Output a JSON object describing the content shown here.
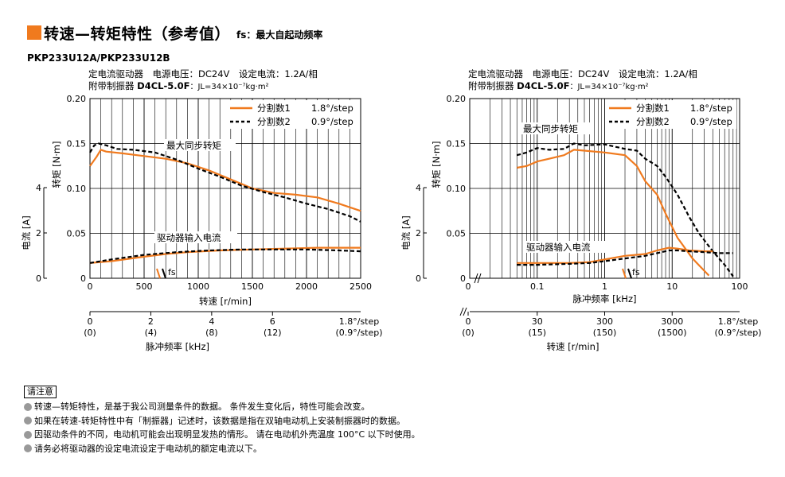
{
  "header": {
    "title": "转速—转矩特性（参考值）",
    "subtitle": "fs：最大自起动频率",
    "model": "PKP233U12A/PKP233U12B"
  },
  "conditions": {
    "line1": "定电流驱动器　电源电压：DC24V　设定电流：1.2A/相",
    "line2_prefix": "附带制振器 ",
    "line2_bold": "D4CL-5.0F",
    "line2_rest": "：JL=34×10⁻⁷kg·m²"
  },
  "colors": {
    "orange": "#f07a1e",
    "black": "#000000",
    "grid": "#000000"
  },
  "legend": {
    "s1_name": "分割数1",
    "s1_step": "1.8°/step",
    "s2_name": "分割数2",
    "s2_step": "0.9°/step"
  },
  "labels": {
    "pullout": "最大同步转矩",
    "current": "驱动器输入电流",
    "fs": "fs",
    "torque_axis": "转矩 [N·m]",
    "current_axis": "电流 [A]",
    "speed_axis": "转速 [r/min]",
    "pulse_axis": "脉冲频率 [kHz]",
    "step18": "1.8°/step",
    "step09": "(0.9°/step)"
  },
  "chart_data": [
    {
      "type": "line",
      "x_scale": "linear",
      "xlabel": "转速 [r/min]",
      "ylabel": "转矩 [N·m]",
      "xlim": [
        0,
        2500
      ],
      "ylim": [
        0,
        0.2
      ],
      "x_ticks": [
        "0",
        "500",
        "1000",
        "1500",
        "2000",
        "2500"
      ],
      "y_ticks": [
        "0",
        "0.05",
        "0.10",
        "0.15",
        "0.20"
      ],
      "y2_label": "电流 [A]",
      "y2_ticks": [
        "0",
        "2",
        "4"
      ],
      "secondary_axis": {
        "label": "脉冲频率 [kHz]",
        "ticks": [
          "0",
          "2",
          "4",
          "6"
        ],
        "ticks_09": [
          "(0)",
          "(4)",
          "(8)",
          "(12)"
        ]
      },
      "series": [
        {
          "name": "分割数1",
          "kind": "torque",
          "style": "solid",
          "x": [
            0,
            30,
            60,
            100,
            150,
            300,
            500,
            700,
            900,
            1100,
            1300,
            1500,
            1700,
            1900,
            2100,
            2300,
            2500
          ],
          "y": [
            0.125,
            0.13,
            0.135,
            0.143,
            0.141,
            0.139,
            0.136,
            0.133,
            0.128,
            0.12,
            0.11,
            0.1,
            0.095,
            0.093,
            0.09,
            0.083,
            0.075
          ]
        },
        {
          "name": "分割数2",
          "kind": "torque",
          "style": "dashed",
          "x": [
            0,
            40,
            80,
            150,
            250,
            400,
            600,
            800,
            1000,
            1200,
            1400,
            1600,
            1800,
            2000,
            2200,
            2400,
            2500
          ],
          "y": [
            0.14,
            0.148,
            0.15,
            0.148,
            0.144,
            0.143,
            0.14,
            0.132,
            0.122,
            0.113,
            0.103,
            0.096,
            0.09,
            0.083,
            0.077,
            0.069,
            0.063
          ]
        },
        {
          "name": "分割数1",
          "kind": "current",
          "style": "solid",
          "x": [
            0,
            200,
            500,
            700,
            900,
            1200,
            1500,
            1800,
            2100,
            2500
          ],
          "y": [
            0.017,
            0.019,
            0.024,
            0.027,
            0.029,
            0.031,
            0.032,
            0.033,
            0.034,
            0.034
          ]
        },
        {
          "name": "分割数2",
          "kind": "current",
          "style": "dashed",
          "x": [
            0,
            200,
            500,
            800,
            1100,
            1400,
            1700,
            2000,
            2300,
            2500
          ],
          "y": [
            0.017,
            0.021,
            0.026,
            0.029,
            0.031,
            0.032,
            0.032,
            0.032,
            0.031,
            0.03
          ]
        }
      ]
    },
    {
      "type": "line",
      "x_scale": "log",
      "xlabel": "脉冲频率 [kHz]",
      "ylabel": "转矩 [N·m]",
      "xlim": [
        0.01,
        100
      ],
      "ylim": [
        0,
        0.2
      ],
      "x_ticks": [
        "0.1",
        "1",
        "10",
        "100"
      ],
      "y_ticks": [
        "0",
        "0.05",
        "0.10",
        "0.15",
        "0.20"
      ],
      "y2_label": "电流 [A]",
      "y2_ticks": [
        "0",
        "2",
        "4"
      ],
      "secondary_axis": {
        "label": "转速 [r/min]",
        "ticks": [
          "0",
          "30",
          "300",
          "3000"
        ],
        "ticks_rpm": [
          "(0)",
          "(15)",
          "(150)",
          "(1500)"
        ]
      },
      "series": [
        {
          "name": "分割数1",
          "kind": "torque",
          "style": "solid",
          "x": [
            0.05,
            0.07,
            0.1,
            0.15,
            0.25,
            0.35,
            0.5,
            1,
            2,
            3,
            4,
            6,
            8,
            12,
            20,
            35
          ],
          "y": [
            0.123,
            0.125,
            0.13,
            0.133,
            0.137,
            0.143,
            0.142,
            0.14,
            0.137,
            0.125,
            0.108,
            0.093,
            0.072,
            0.045,
            0.022,
            0.003
          ]
        },
        {
          "name": "分割数2",
          "kind": "torque",
          "style": "dashed",
          "x": [
            0.05,
            0.07,
            0.1,
            0.15,
            0.25,
            0.35,
            0.5,
            1,
            2,
            3,
            4,
            6,
            8,
            12,
            18,
            25,
            40,
            60,
            80
          ],
          "y": [
            0.137,
            0.14,
            0.145,
            0.143,
            0.144,
            0.15,
            0.148,
            0.149,
            0.144,
            0.142,
            0.133,
            0.125,
            0.113,
            0.093,
            0.068,
            0.05,
            0.03,
            0.015,
            0.002
          ]
        },
        {
          "name": "分割数1",
          "kind": "current",
          "style": "solid",
          "x": [
            0.05,
            0.1,
            0.3,
            0.6,
            1,
            2,
            4,
            6,
            9,
            12,
            18,
            30,
            40
          ],
          "y": [
            0.017,
            0.017,
            0.017,
            0.018,
            0.021,
            0.025,
            0.027,
            0.031,
            0.034,
            0.033,
            0.031,
            0.03,
            0.03
          ]
        },
        {
          "name": "分割数2",
          "kind": "current",
          "style": "dashed",
          "x": [
            0.05,
            0.1,
            0.3,
            0.6,
            1,
            2,
            4,
            6,
            9,
            12,
            18,
            30,
            50,
            80
          ],
          "y": [
            0.015,
            0.015,
            0.016,
            0.017,
            0.019,
            0.022,
            0.025,
            0.028,
            0.031,
            0.031,
            0.03,
            0.029,
            0.028,
            0.028
          ]
        }
      ]
    }
  ],
  "notes": {
    "header": "请注意",
    "items": [
      "转速—转矩特性，是基于我公司测量条件的数据。 条件发生变化后，特性可能会改变。",
      "如果在转速-转矩特性中有「制振器」记述时，该数据是指在双轴电动机上安装制振器时的数据。",
      "因驱动条件的不同，电动机可能会出现明显发热的情形。 请在电动机外壳温度 100°C 以下时使用。",
      "请务必将驱动器的设定电流设定于电动机的额定电流以下。"
    ]
  }
}
